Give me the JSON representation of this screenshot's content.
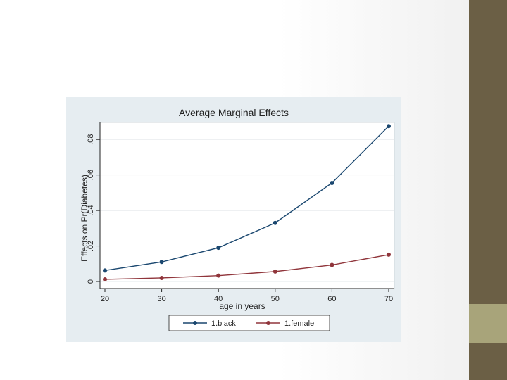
{
  "slide": {
    "sidebar_color": "#6b5f45",
    "accent_color": "#a8a47a"
  },
  "chart_data": {
    "type": "line",
    "title": "Average Marginal Effects",
    "xlabel": "age in years",
    "ylabel": "Effects on Pr(Diabetes)",
    "x": [
      20,
      30,
      40,
      50,
      60,
      70
    ],
    "xticks": [
      "20",
      "30",
      "40",
      "50",
      "60",
      "70"
    ],
    "yticks": [
      0,
      0.02,
      0.04,
      0.06,
      0.08
    ],
    "ytick_labels": [
      "0",
      ".02",
      ".04",
      ".06",
      ".08"
    ],
    "ylim": [
      0,
      0.088
    ],
    "xlim": [
      20,
      70
    ],
    "grid": true,
    "legend_position": "bottom",
    "series": [
      {
        "name": "1.black",
        "color": "#1a476f",
        "values": [
          0.0062,
          0.011,
          0.019,
          0.033,
          0.0555,
          0.0875
        ]
      },
      {
        "name": "1.female",
        "color": "#90353b",
        "values": [
          0.0012,
          0.002,
          0.0033,
          0.0056,
          0.0093,
          0.0151
        ]
      }
    ]
  }
}
